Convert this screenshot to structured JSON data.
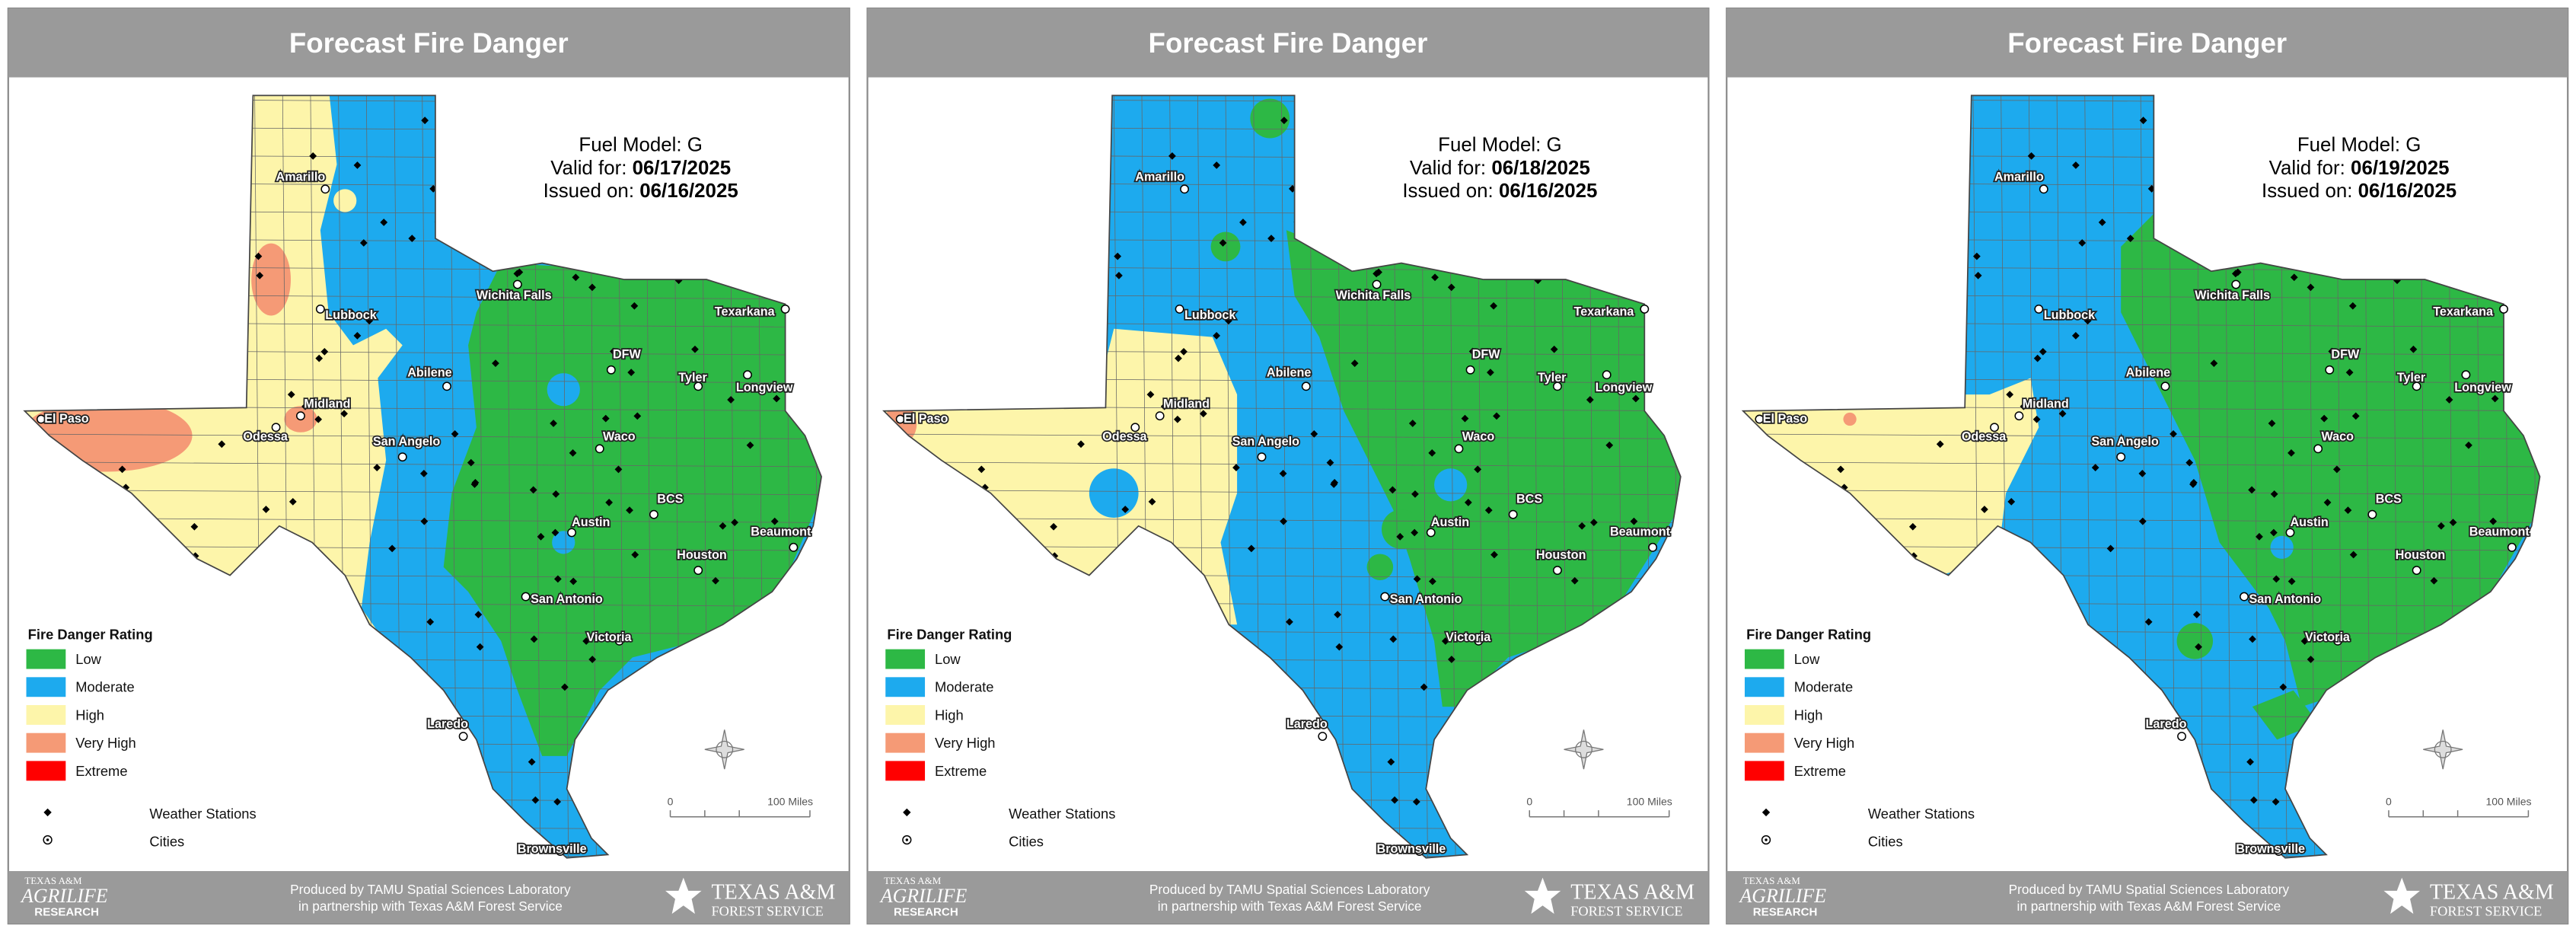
{
  "panels": [
    {
      "title": "Forecast Fire Danger",
      "fuel_model": "Fuel Model: G",
      "valid_label": "Valid for:",
      "valid_date": "06/17/2025",
      "issued_label": "Issued on:",
      "issued_date": "06/16/2025"
    },
    {
      "title": "Forecast Fire Danger",
      "fuel_model": "Fuel Model: G",
      "valid_label": "Valid for:",
      "valid_date": "06/18/2025",
      "issued_label": "Issued on:",
      "issued_date": "06/16/2025"
    },
    {
      "title": "Forecast Fire Danger",
      "fuel_model": "Fuel Model: G",
      "valid_label": "Valid for:",
      "valid_date": "06/19/2025",
      "issued_label": "Issued on:",
      "issued_date": "06/16/2025"
    }
  ],
  "cities": [
    "Amarillo",
    "Lubbock",
    "Wichita Falls",
    "Texarkana",
    "DFW",
    "Tyler",
    "Longview",
    "Abilene",
    "Midland",
    "Odessa",
    "El Paso",
    "San Angelo",
    "Waco",
    "BCS",
    "Austin",
    "Beaumont",
    "Houston",
    "San Antonio",
    "Victoria",
    "Laredo",
    "Brownsville"
  ],
  "legend": {
    "title": "Fire Danger Rating",
    "ratings": [
      {
        "label": "Low",
        "color": "#2db845"
      },
      {
        "label": "Moderate",
        "color": "#1daaee"
      },
      {
        "label": "High",
        "color": "#fdf5aa"
      },
      {
        "label": "Very High",
        "color": "#f59a76"
      },
      {
        "label": "Extreme",
        "color": "#ff0000"
      }
    ],
    "stations": "Weather Stations",
    "cities": "Cities"
  },
  "scale": {
    "start": "0",
    "end": "100 Miles"
  },
  "footer": {
    "line1": "Produced by TAMU Spatial Sciences Laboratory",
    "line2": "in partnership with Texas A&M Forest Service",
    "agrilife": [
      "TEXAS A&M",
      "AGRILIFE",
      "RESEARCH"
    ],
    "forest": [
      "TEXAS A&M",
      "FOREST SERVICE"
    ]
  }
}
